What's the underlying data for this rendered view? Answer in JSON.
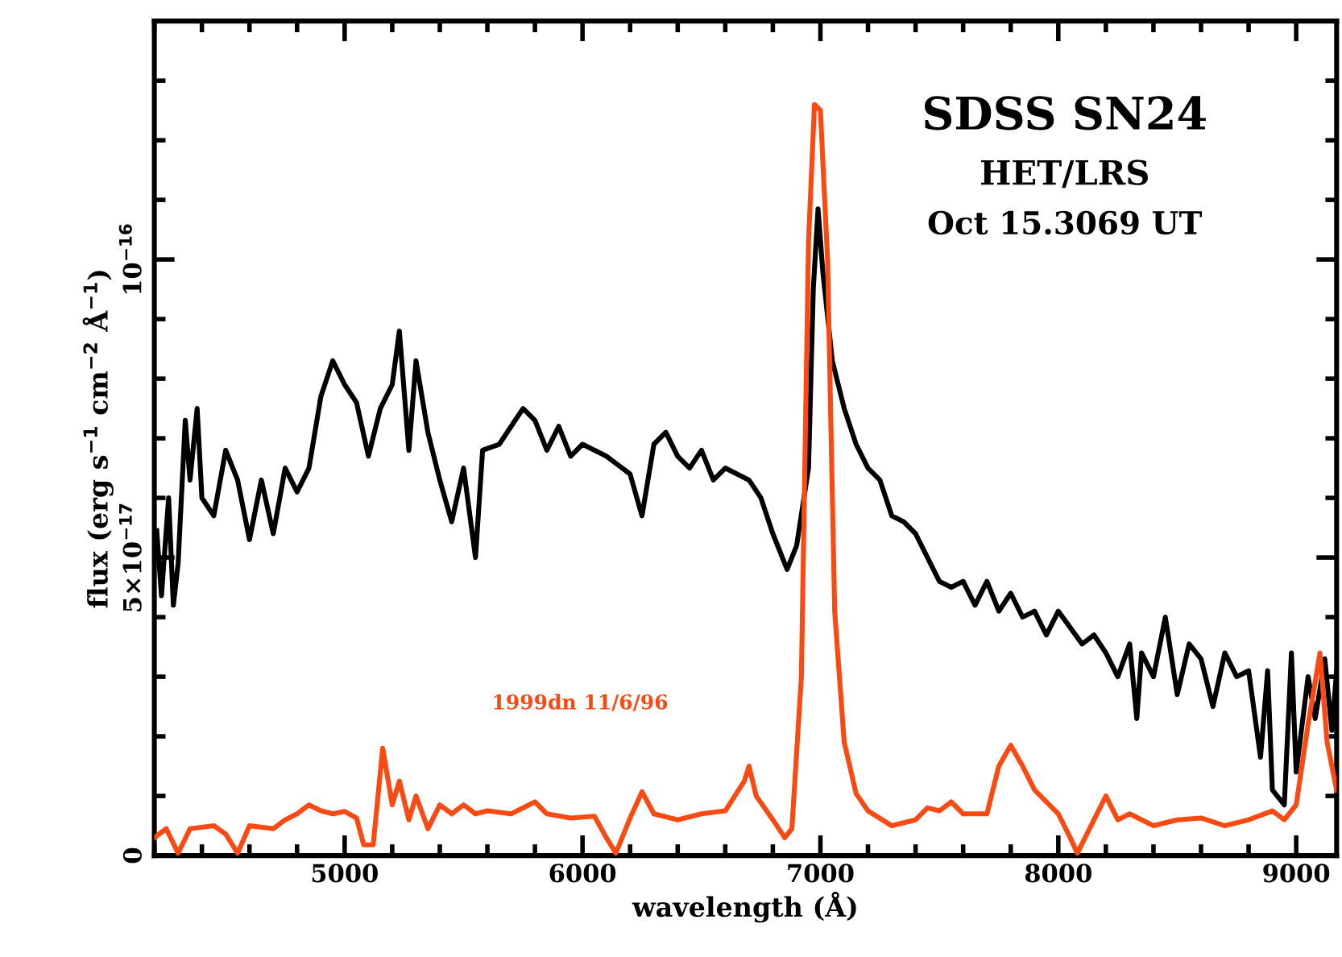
{
  "chart_data": {
    "type": "line",
    "title": "SDSS SN24",
    "subtitle": "HET/LRS",
    "annotations": [
      "Oct 15.3069 UT"
    ],
    "xlabel": "wavelength (Å)",
    "ylabel": "flux (erg s$^{−1}$ cm$^{−2}$ Å$^{−1}$)",
    "xlim": [
      4200,
      9170
    ],
    "xticks": [
      5000,
      6000,
      7000,
      8000,
      9000
    ],
    "ylim": [
      0,
      1.4e-16
    ],
    "yticks": [
      {
        "value": 0,
        "label": "0"
      },
      {
        "value": 5e-17,
        "label": "5×10$^{−17}$"
      },
      {
        "value": 1e-16,
        "label": "10$^{−16}$"
      }
    ],
    "grid": false,
    "legend": false,
    "marker": "none",
    "line_style": "solid",
    "series": [
      {
        "color": "#000000",
        "x": [
          4210,
          4230,
          4260,
          4280,
          4300,
          4330,
          4350,
          4380,
          4400,
          4450,
          4500,
          4550,
          4600,
          4650,
          4700,
          4750,
          4800,
          4850,
          4900,
          4950,
          5000,
          5050,
          5100,
          5150,
          5200,
          5230,
          5270,
          5300,
          5350,
          5400,
          5450,
          5500,
          5550,
          5580,
          5650,
          5700,
          5750,
          5800,
          5850,
          5900,
          5950,
          6000,
          6100,
          6200,
          6250,
          6300,
          6350,
          6400,
          6450,
          6500,
          6550,
          6600,
          6650,
          6700,
          6750,
          6800,
          6860,
          6900,
          6950,
          6970,
          6990,
          7010,
          7050,
          7100,
          7150,
          7200,
          7250,
          7300,
          7350,
          7400,
          7450,
          7500,
          7550,
          7600,
          7650,
          7700,
          7750,
          7800,
          7850,
          7900,
          7950,
          8000,
          8100,
          8150,
          8200,
          8250,
          8300,
          8330,
          8350,
          8400,
          8450,
          8500,
          8550,
          8600,
          8650,
          8700,
          8750,
          8800,
          8850,
          8880,
          8900,
          8950,
          8980,
          9000,
          9050,
          9080,
          9120,
          9150,
          9170
        ],
        "values": [
          5.45e-17,
          4.36e-17,
          6e-17,
          4.2e-17,
          4.9e-17,
          7.3e-17,
          6.3e-17,
          7.5e-17,
          6e-17,
          5.7e-17,
          6.8e-17,
          6.3e-17,
          5.3e-17,
          6.3e-17,
          5.4e-17,
          6.5e-17,
          6.1e-17,
          6.5e-17,
          7.7e-17,
          8.3e-17,
          7.9e-17,
          7.6e-17,
          6.7e-17,
          7.5e-17,
          7.9e-17,
          8.8e-17,
          6.8e-17,
          8.3e-17,
          7.1e-17,
          6.3e-17,
          5.6e-17,
          6.5e-17,
          5e-17,
          6.8e-17,
          6.9e-17,
          7.2e-17,
          7.5e-17,
          7.3e-17,
          6.8e-17,
          7.2e-17,
          6.7e-17,
          6.9e-17,
          6.7e-17,
          6.4e-17,
          5.7e-17,
          6.9e-17,
          7.1e-17,
          6.7e-17,
          6.5e-17,
          6.8e-17,
          6.3e-17,
          6.5e-17,
          6.4e-17,
          6.3e-17,
          6e-17,
          5.4e-17,
          4.8e-17,
          5.2e-17,
          6.5e-17,
          9.5e-17,
          1.085e-16,
          9.8e-17,
          8.3e-17,
          7.5e-17,
          6.9e-17,
          6.5e-17,
          6.3e-17,
          5.7e-17,
          5.6e-17,
          5.4e-17,
          5e-17,
          4.6e-17,
          4.5e-17,
          4.6e-17,
          4.2e-17,
          4.6e-17,
          4.1e-17,
          4.4e-17,
          4e-17,
          4.1e-17,
          3.7e-17,
          4.1e-17,
          3.55e-17,
          3.7e-17,
          3.4e-17,
          3e-17,
          3.55e-17,
          2.3e-17,
          3.4e-17,
          3e-17,
          4e-17,
          2.7e-17,
          3.55e-17,
          3.3e-17,
          2.5e-17,
          3.4e-17,
          3e-17,
          3.1e-17,
          1.65e-17,
          3.1e-17,
          1.1e-17,
          8.5e-18,
          3.4e-17,
          1.4e-17,
          3e-17,
          2.3e-17,
          3.3e-17,
          2.1e-17,
          3.1e-17
        ]
      },
      {
        "name": "1999dn 11/6/96",
        "color": "#f94a14",
        "x": [
          4200,
          4250,
          4300,
          4350,
          4450,
          4500,
          4550,
          4600,
          4700,
          4750,
          4800,
          4850,
          4900,
          4950,
          5000,
          5050,
          5080,
          5120,
          5160,
          5200,
          5230,
          5270,
          5300,
          5350,
          5400,
          5450,
          5500,
          5550,
          5600,
          5700,
          5800,
          5850,
          5950,
          6050,
          6100,
          6140,
          6200,
          6250,
          6300,
          6400,
          6500,
          6600,
          6680,
          6700,
          6730,
          6800,
          6850,
          6880,
          6920,
          6950,
          6975,
          7000,
          7030,
          7060,
          7100,
          7150,
          7200,
          7300,
          7400,
          7450,
          7500,
          7550,
          7600,
          7700,
          7750,
          7800,
          7850,
          7900,
          8000,
          8050,
          8080,
          8150,
          8200,
          8250,
          8300,
          8400,
          8500,
          8600,
          8700,
          8800,
          8900,
          8950,
          9000,
          9050,
          9100,
          9130,
          9170
        ],
        "values": [
          3e-18,
          4.5e-18,
          4e-19,
          4.5e-18,
          5e-18,
          3.6e-18,
          4e-19,
          5e-18,
          4.5e-18,
          6e-18,
          7e-18,
          8.5e-18,
          7.5e-18,
          7e-18,
          7.4e-18,
          6.3e-18,
          1.8e-18,
          1.8e-18,
          1.8e-17,
          8.5e-18,
          1.25e-17,
          6e-18,
          1e-17,
          4.5e-18,
          8.5e-18,
          7e-18,
          8.5e-18,
          7e-18,
          7.5e-18,
          7e-18,
          9e-18,
          7e-18,
          6.3e-18,
          6.6e-18,
          3e-18,
          4e-19,
          6.3e-18,
          1.07e-17,
          7e-18,
          6e-18,
          7e-18,
          7.5e-18,
          1.25e-17,
          1.5e-17,
          1e-17,
          6e-18,
          3e-18,
          4.5e-18,
          3e-17,
          1.03e-16,
          1.26e-16,
          1.25e-16,
          1e-16,
          4.1e-17,
          1.9e-17,
          1.04e-17,
          7.5e-18,
          5e-18,
          6e-18,
          8e-18,
          7.5e-18,
          9e-18,
          7e-18,
          7e-18,
          1.5e-17,
          1.85e-17,
          1.5e-17,
          1.1e-17,
          7e-18,
          3e-18,
          4e-19,
          6e-18,
          1e-17,
          6e-18,
          7e-18,
          5e-18,
          6e-18,
          6.3e-18,
          5e-18,
          6e-18,
          7.5e-18,
          6e-18,
          8.5e-18,
          2.2e-17,
          3.4e-17,
          1.9e-17,
          1.1e-17
        ]
      }
    ]
  }
}
